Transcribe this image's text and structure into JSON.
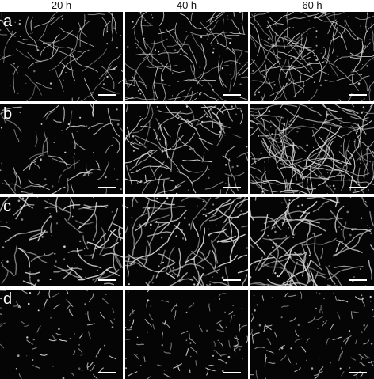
{
  "figure": {
    "columns": [
      "20 h",
      "40 h",
      "60 h"
    ],
    "rows": [
      "a",
      "b",
      "c",
      "d"
    ],
    "colors": {
      "background": "#ffffff",
      "panel": "#050505",
      "hypha": "#d8d8d8",
      "label": "#ffffff"
    },
    "panel_content": {
      "a": {
        "density": [
          0.35,
          0.7,
          0.85
        ],
        "style": "long-filaments"
      },
      "b": {
        "density": [
          0.25,
          0.55,
          0.9
        ],
        "style": "short-segments-to-branched"
      },
      "c": {
        "density": [
          0.55,
          0.8,
          0.85
        ],
        "style": "thick-filaments"
      },
      "d": {
        "density": [
          0.2,
          0.35,
          0.45
        ],
        "style": "short-fragments"
      }
    }
  }
}
